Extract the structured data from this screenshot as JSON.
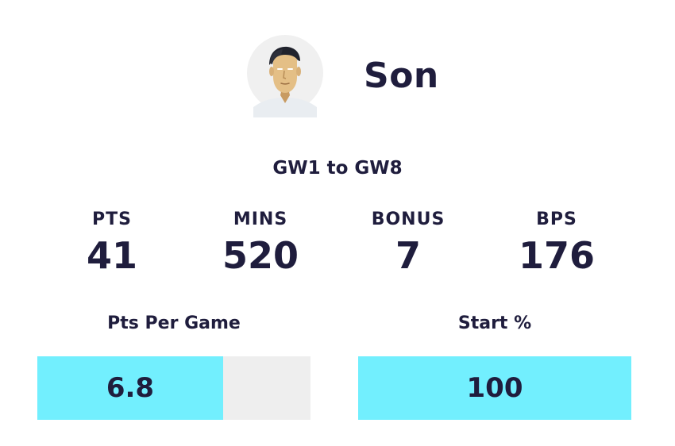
{
  "player": {
    "name": "Son",
    "avatar_icon": "player-face-icon"
  },
  "range": "GW1 to GW8",
  "stats": [
    {
      "label": "PTS",
      "value": "41"
    },
    {
      "label": "MINS",
      "value": "520"
    },
    {
      "label": "BONUS",
      "value": "7"
    },
    {
      "label": "BPS",
      "value": "176"
    }
  ],
  "metrics": {
    "pts_per_game": {
      "label": "Pts Per Game",
      "value": "6.8",
      "fill_fraction": 0.68
    },
    "start_pct": {
      "label": "Start %",
      "value": "100",
      "fill_fraction": 1.0
    }
  },
  "colors": {
    "text": "#1f1d3d",
    "meter_fill": "#72effe",
    "meter_track": "#eeeeee"
  }
}
